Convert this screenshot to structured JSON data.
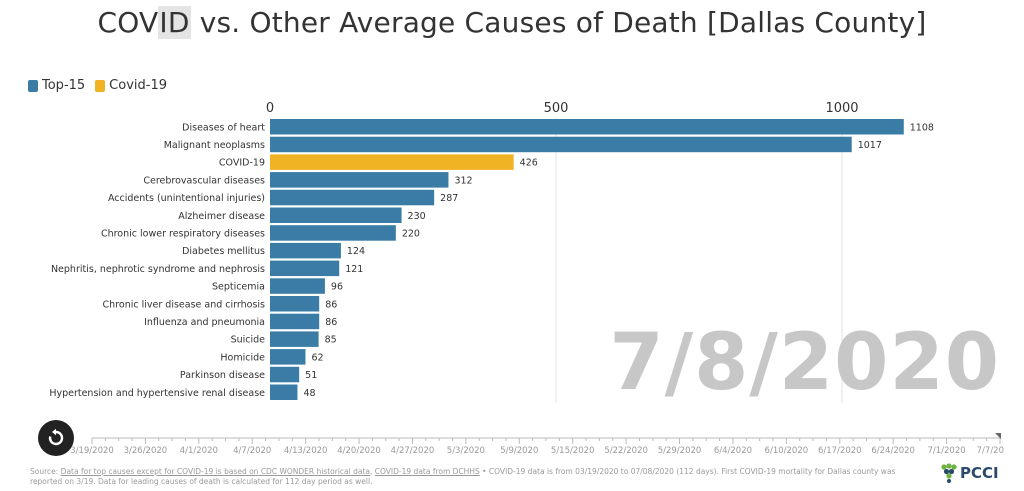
{
  "title": {
    "pre": "COV",
    "highlight": "ID",
    "post": " vs. Other Average Causes of Death [Dallas County]"
  },
  "legend": [
    {
      "label": "Top-15",
      "color": "#3a7ca5"
    },
    {
      "label": "Covid-19",
      "color": "#f0b323"
    }
  ],
  "current_date": "7/8/2020",
  "chart_data": {
    "type": "bar",
    "orientation": "horizontal",
    "title": "COVID vs. Other Average Causes of Death [Dallas County]",
    "xlim": [
      0,
      1150
    ],
    "x_ticks": [
      0,
      500,
      1000
    ],
    "categories": [
      "Diseases of heart",
      "Malignant neoplasms",
      "COVID-19",
      "Cerebrovascular diseases",
      "Accidents (unintentional injuries)",
      "Alzheimer disease",
      "Chronic lower respiratory diseases",
      "Diabetes mellitus",
      "Nephritis, nephrotic syndrome and nephrosis",
      "Septicemia",
      "Chronic liver disease and cirrhosis",
      "Influenza and pneumonia",
      "Suicide",
      "Homicide",
      "Parkinson disease",
      "Hypertension and hypertensive renal disease"
    ],
    "values": [
      1108,
      1017,
      426,
      312,
      287,
      230,
      220,
      124,
      121,
      96,
      86,
      86,
      85,
      62,
      51,
      48
    ],
    "series_of": [
      "Top-15",
      "Top-15",
      "Covid-19",
      "Top-15",
      "Top-15",
      "Top-15",
      "Top-15",
      "Top-15",
      "Top-15",
      "Top-15",
      "Top-15",
      "Top-15",
      "Top-15",
      "Top-15",
      "Top-15",
      "Top-15"
    ],
    "timeline_labels": [
      "3/19/2020",
      "3/26/2020",
      "4/1/2020",
      "4/7/2020",
      "4/13/2020",
      "4/20/2020",
      "4/27/2020",
      "5/3/2020",
      "5/9/2020",
      "5/15/2020",
      "5/22/2020",
      "5/29/2020",
      "6/4/2020",
      "6/10/2020",
      "6/17/2020",
      "6/24/2020",
      "7/1/2020",
      "7/7/20"
    ],
    "timeline_position": 1.0
  },
  "footnote": {
    "source_prefix": "Source: ",
    "link1": "Data for top causes except for COVID-19 is based on CDC WONDER historical data",
    "sep": ", ",
    "link2": "COVID-19 data from DCHHS",
    "rest": " • COVID-19 data is from 03/19/2020 to 07/08/2020 (112 days). First COVID-19 mortality for Dallas county was reported on 3/19. Data for leading causes of death is calculated for 112 day period as well."
  },
  "logo": {
    "text": "PCCI",
    "icon": "grape-cluster-icon"
  },
  "play_icon": "replay-icon"
}
